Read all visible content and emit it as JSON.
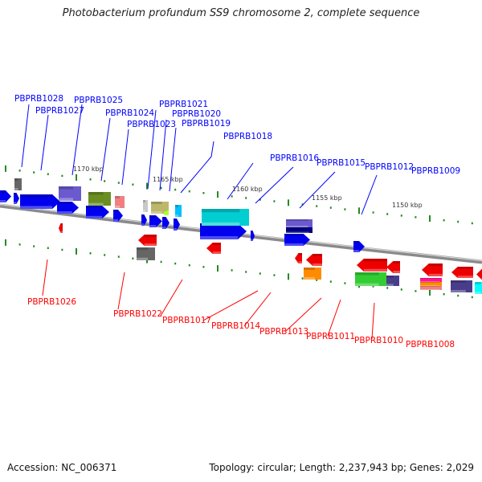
{
  "title": "Photobacterium profundum SS9 chromosome 2, complete sequence",
  "footer": {
    "accession": "Accession: NC_006371",
    "topology": "Topology: circular; Length: 2,237,943 bp; Genes: 2,029"
  },
  "colors": {
    "forward_label": "#0000ff",
    "reverse_label": "#ff0000",
    "forward_gene": "#0000ee",
    "reverse_gene": "#ee0000",
    "backbone": "#888888",
    "ticks": "#228b22"
  },
  "scale_labels": [
    "1170 kbp",
    "1165 kbp",
    "1160 kbp",
    "1155 kbp",
    "1150 kbp"
  ],
  "forward_labels": [
    "PBPRB1028",
    "PBPRB1027",
    "PBPRB1025",
    "PBPRB1024",
    "PBPRB1023",
    "PBPRB1021",
    "PBPRB1020",
    "PBPRB1019",
    "PBPRB1018",
    "PBPRB1016",
    "PBPRB1015",
    "PBPRB1012",
    "PBPRB1009"
  ],
  "reverse_labels": [
    "PBPRB1026",
    "PBPRB1022",
    "PBPRB1017",
    "PBPRB1014",
    "PBPRB1013",
    "PBPRB1011",
    "PBPRB1010",
    "PBPRB1008"
  ]
}
